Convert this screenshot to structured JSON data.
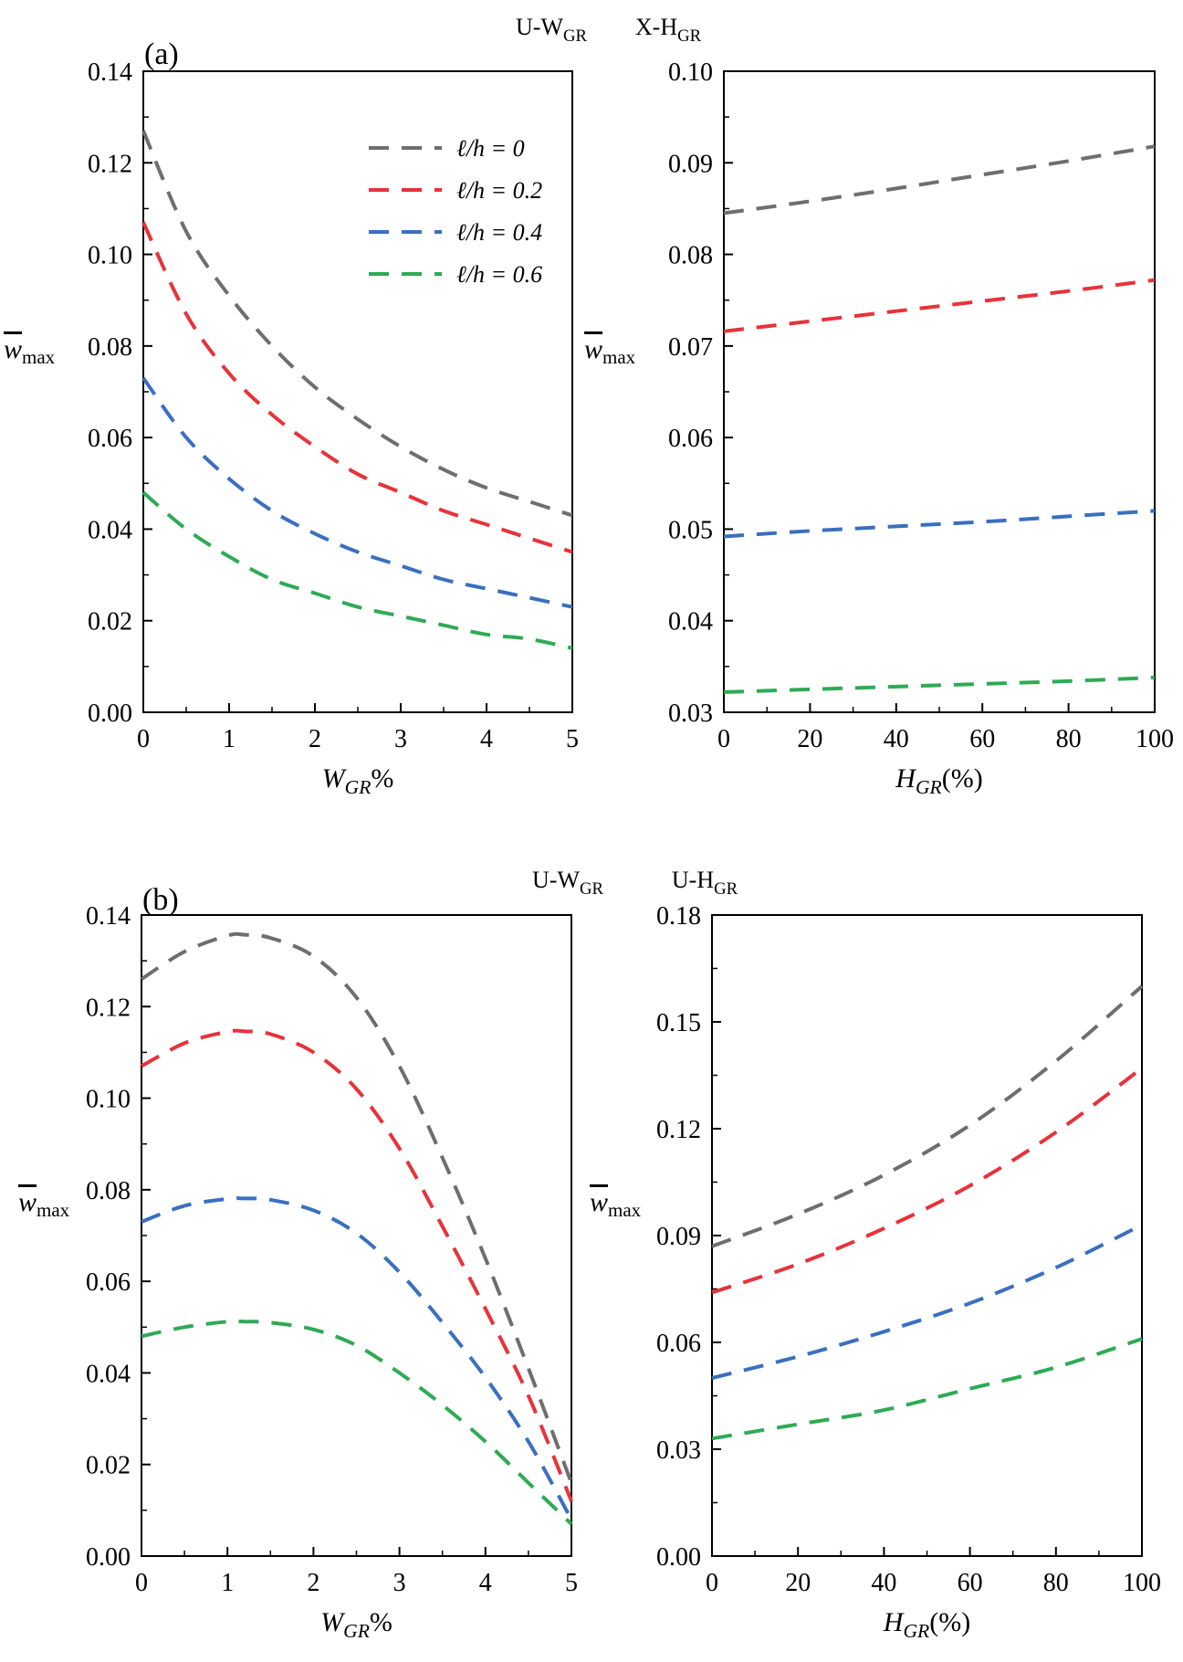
{
  "figure": {
    "labels": {
      "a": "(a)",
      "b": "(b)"
    },
    "ylabel": {
      "main": "w",
      "sub": "max"
    },
    "legend": [
      {
        "label": "ℓ/h = 0",
        "color": "#6e6e6e"
      },
      {
        "label": "ℓ/h = 0.2",
        "color": "#e8323a"
      },
      {
        "label": "ℓ/h = 0.4",
        "color": "#3a6fc0"
      },
      {
        "label": "ℓ/h = 0.6",
        "color": "#2eaa55"
      }
    ]
  },
  "chart_data": [
    {
      "id": "a1",
      "type": "line",
      "title": {
        "main": "U-W",
        "sub": "GR"
      },
      "xlabel": {
        "main": "W",
        "sub": "GR",
        "suffix": "%"
      },
      "xlim": [
        0,
        5
      ],
      "ylim": [
        0,
        0.14
      ],
      "xticks": [
        "0",
        "1",
        "2",
        "3",
        "4",
        "5"
      ],
      "yticks": [
        "0.00",
        "0.02",
        "0.04",
        "0.06",
        "0.08",
        "0.10",
        "0.12",
        "0.14"
      ],
      "x": [
        0,
        0.5,
        1,
        1.5,
        2,
        2.5,
        3,
        3.5,
        4,
        4.5,
        5
      ],
      "series": [
        {
          "name": "ℓ/h = 0",
          "values": [
            0.127,
            0.105,
            0.091,
            0.08,
            0.071,
            0.064,
            0.058,
            0.053,
            0.049,
            0.046,
            0.043
          ]
        },
        {
          "name": "ℓ/h = 0.2",
          "values": [
            0.107,
            0.087,
            0.074,
            0.065,
            0.058,
            0.052,
            0.048,
            0.044,
            0.041,
            0.038,
            0.035
          ]
        },
        {
          "name": "ℓ/h = 0.4",
          "values": [
            0.073,
            0.06,
            0.051,
            0.044,
            0.039,
            0.035,
            0.032,
            0.029,
            0.027,
            0.025,
            0.023
          ]
        },
        {
          "name": "ℓ/h = 0.6",
          "values": [
            0.048,
            0.04,
            0.034,
            0.029,
            0.026,
            0.023,
            0.021,
            0.019,
            0.017,
            0.016,
            0.014
          ]
        }
      ]
    },
    {
      "id": "a2",
      "type": "line",
      "title": {
        "main": "X-H",
        "sub": "GR"
      },
      "xlabel": {
        "main": "H",
        "sub": "GR",
        "suffix": "(%)"
      },
      "xlim": [
        0,
        100
      ],
      "ylim": [
        0.03,
        0.1
      ],
      "xticks": [
        "0",
        "20",
        "40",
        "60",
        "80",
        "100"
      ],
      "yticks": [
        "0.03",
        "0.04",
        "0.05",
        "0.06",
        "0.07",
        "0.08",
        "0.09",
        "0.10"
      ],
      "x": [
        0,
        20,
        40,
        60,
        80,
        100
      ],
      "series": [
        {
          "name": "ℓ/h = 0",
          "values": [
            0.0845,
            0.0858,
            0.0872,
            0.0887,
            0.0902,
            0.0918
          ]
        },
        {
          "name": "ℓ/h = 0.2",
          "values": [
            0.0716,
            0.0727,
            0.0738,
            0.0749,
            0.076,
            0.0772
          ]
        },
        {
          "name": "ℓ/h = 0.4",
          "values": [
            0.0492,
            0.0498,
            0.0503,
            0.0508,
            0.0514,
            0.052
          ]
        },
        {
          "name": "ℓ/h = 0.6",
          "values": [
            0.0322,
            0.0325,
            0.0328,
            0.0331,
            0.0334,
            0.0338
          ]
        }
      ]
    },
    {
      "id": "b1",
      "type": "line",
      "title": {
        "main": "U-W",
        "sub": "GR"
      },
      "xlabel": {
        "main": "W",
        "sub": "GR",
        "suffix": "%"
      },
      "xlim": [
        0,
        5
      ],
      "ylim": [
        0,
        0.14
      ],
      "xticks": [
        "0",
        "1",
        "2",
        "3",
        "4",
        "5"
      ],
      "yticks": [
        "0.00",
        "0.02",
        "0.04",
        "0.06",
        "0.08",
        "0.10",
        "0.12",
        "0.14"
      ],
      "x": [
        0,
        0.5,
        1,
        1.2,
        1.5,
        2,
        2.5,
        3,
        3.5,
        4,
        4.5,
        5
      ],
      "series": [
        {
          "name": "ℓ/h = 0",
          "values": [
            0.126,
            0.132,
            0.1355,
            0.1357,
            0.135,
            0.131,
            0.122,
            0.107,
            0.087,
            0.065,
            0.041,
            0.016
          ]
        },
        {
          "name": "ℓ/h = 0.2",
          "values": [
            0.107,
            0.112,
            0.1145,
            0.1146,
            0.114,
            0.11,
            0.102,
            0.089,
            0.072,
            0.054,
            0.035,
            0.012
          ]
        },
        {
          "name": "ℓ/h = 0.4",
          "values": [
            0.073,
            0.0765,
            0.078,
            0.0781,
            0.0778,
            0.0755,
            0.0705,
            0.062,
            0.051,
            0.039,
            0.025,
            0.008
          ]
        },
        {
          "name": "ℓ/h = 0.6",
          "values": [
            0.048,
            0.05,
            0.0512,
            0.0512,
            0.051,
            0.0495,
            0.046,
            0.04,
            0.033,
            0.025,
            0.016,
            0.007
          ]
        }
      ]
    },
    {
      "id": "b2",
      "type": "line",
      "title": {
        "main": "U-H",
        "sub": "GR"
      },
      "xlabel": {
        "main": "H",
        "sub": "GR",
        "suffix": "(%)"
      },
      "xlim": [
        0,
        100
      ],
      "ylim": [
        0,
        0.18
      ],
      "xticks": [
        "0",
        "20",
        "40",
        "60",
        "80",
        "100"
      ],
      "yticks": [
        "0.00",
        "0.03",
        "0.06",
        "0.09",
        "0.12",
        "0.15",
        "0.18"
      ],
      "x": [
        0,
        20,
        40,
        60,
        80,
        100
      ],
      "series": [
        {
          "name": "ℓ/h = 0",
          "values": [
            0.087,
            0.096,
            0.107,
            0.121,
            0.139,
            0.16
          ]
        },
        {
          "name": "ℓ/h = 0.2",
          "values": [
            0.074,
            0.082,
            0.092,
            0.104,
            0.119,
            0.137
          ]
        },
        {
          "name": "ℓ/h = 0.4",
          "values": [
            0.05,
            0.056,
            0.063,
            0.071,
            0.081,
            0.093
          ]
        },
        {
          "name": "ℓ/h = 0.6",
          "values": [
            0.033,
            0.037,
            0.041,
            0.047,
            0.053,
            0.061
          ]
        }
      ]
    }
  ]
}
